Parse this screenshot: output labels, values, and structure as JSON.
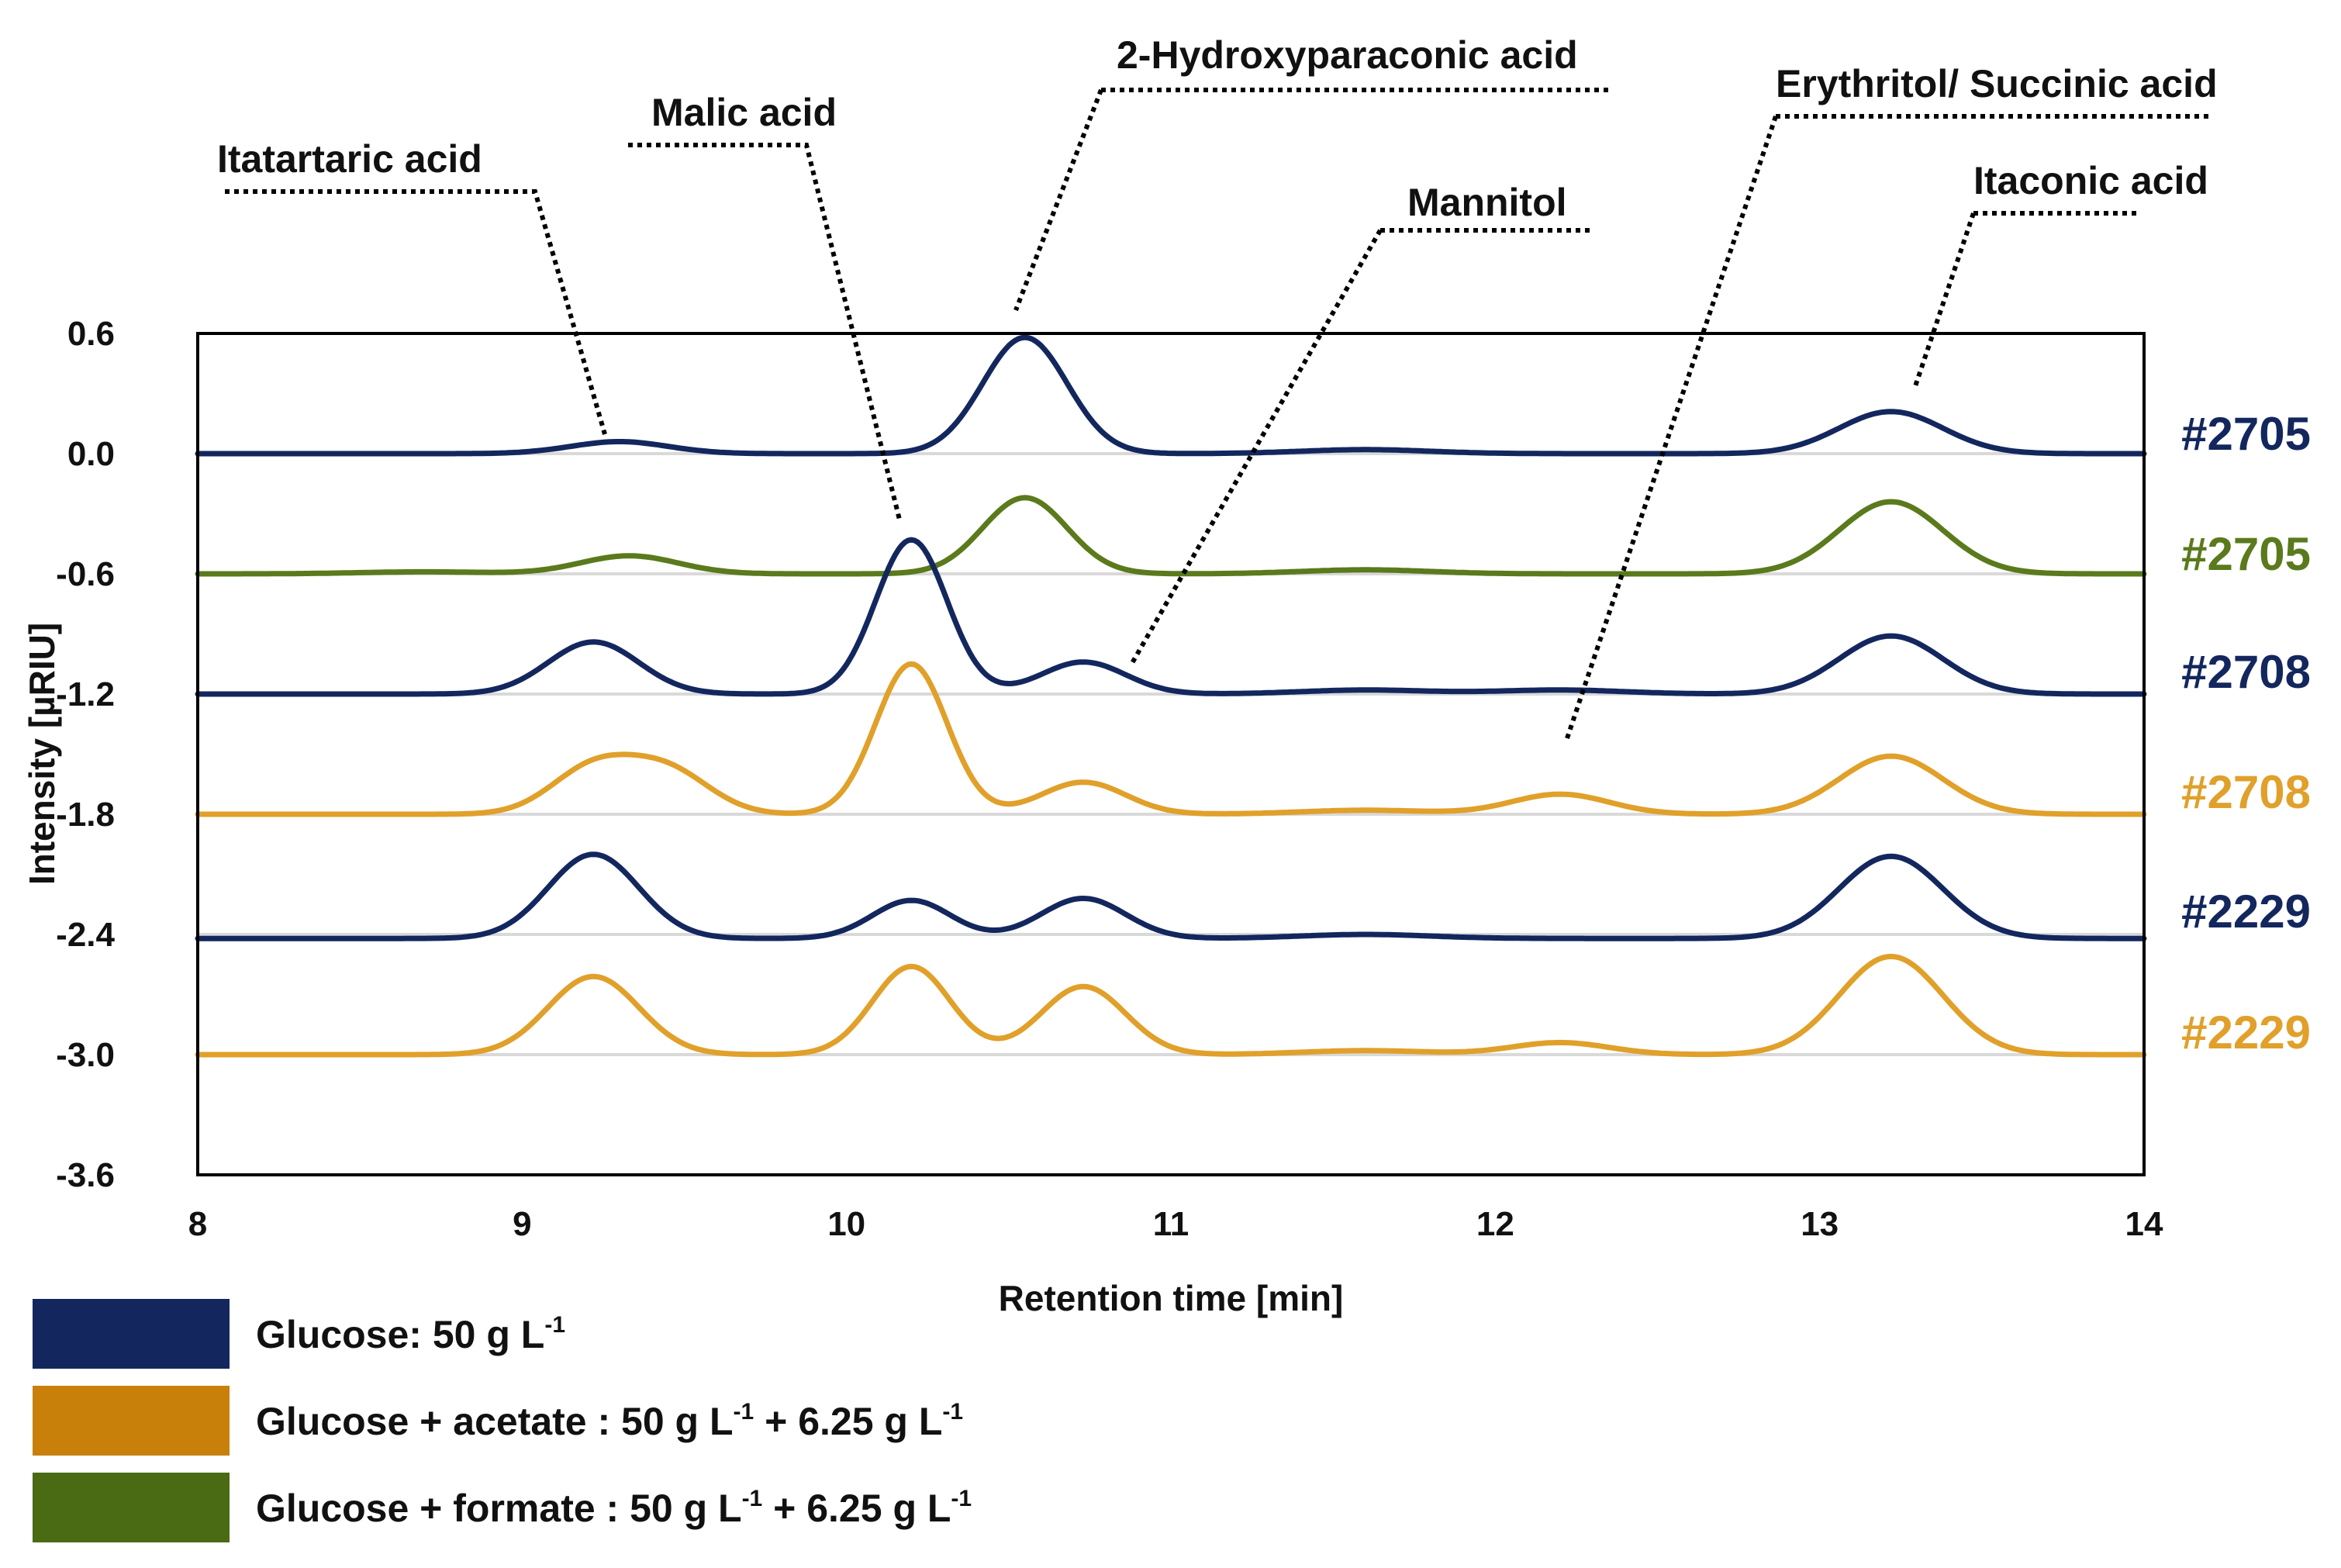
{
  "chart_data": {
    "type": "line",
    "title": "",
    "xlabel": "Retention time [min]",
    "ylabel": "Intensity [µRIU]",
    "xlim": [
      8,
      14
    ],
    "ylim": [
      -3.6,
      0.6
    ],
    "x_ticks": [
      "8",
      "9",
      "10",
      "11",
      "12",
      "13",
      "14"
    ],
    "y_ticks": [
      "0.6",
      "0.0",
      "-0.6",
      "-1.2",
      "-1.8",
      "-2.4",
      "-3.0",
      "-3.6"
    ],
    "grid": "horizontal",
    "colors": {
      "glucose": "#13275e",
      "acetate": "#e0a02a",
      "formate": "#5a7a1c"
    },
    "series": [
      {
        "name": "#2705",
        "condition": "glucose",
        "baseline": 0.0,
        "tilt": 0.0,
        "peaks": [
          {
            "rt": 9.3,
            "height": 0.06,
            "width": 0.15
          },
          {
            "rt": 10.55,
            "height": 0.58,
            "width": 0.13
          },
          {
            "rt": 11.6,
            "height": 0.02,
            "width": 0.2
          },
          {
            "rt": 13.22,
            "height": 0.21,
            "width": 0.16
          }
        ]
      },
      {
        "name": "#2705",
        "condition": "formate",
        "baseline": -0.6,
        "tilt": 0.0,
        "peaks": [
          {
            "rt": 9.33,
            "height": 0.09,
            "width": 0.15
          },
          {
            "rt": 8.7,
            "height": 0.01,
            "width": 0.2
          },
          {
            "rt": 10.55,
            "height": 0.38,
            "width": 0.13
          },
          {
            "rt": 11.6,
            "height": 0.02,
            "width": 0.2
          },
          {
            "rt": 13.22,
            "height": 0.36,
            "width": 0.16
          }
        ]
      },
      {
        "name": "#2708",
        "condition": "glucose",
        "baseline": -1.2,
        "tilt": 0.0,
        "peaks": [
          {
            "rt": 9.22,
            "height": 0.26,
            "width": 0.14
          },
          {
            "rt": 10.2,
            "height": 0.77,
            "width": 0.11
          },
          {
            "rt": 10.73,
            "height": 0.16,
            "width": 0.13
          },
          {
            "rt": 11.6,
            "height": 0.02,
            "width": 0.2
          },
          {
            "rt": 12.2,
            "height": 0.02,
            "width": 0.2
          },
          {
            "rt": 13.22,
            "height": 0.29,
            "width": 0.16
          }
        ]
      },
      {
        "name": "#2708",
        "condition": "acetate",
        "baseline": -1.8,
        "tilt": 0.0,
        "peaks": [
          {
            "rt": 9.22,
            "height": 0.23,
            "width": 0.13
          },
          {
            "rt": 9.45,
            "height": 0.21,
            "width": 0.13
          },
          {
            "rt": 10.2,
            "height": 0.75,
            "width": 0.11
          },
          {
            "rt": 10.73,
            "height": 0.16,
            "width": 0.13
          },
          {
            "rt": 11.6,
            "height": 0.02,
            "width": 0.2
          },
          {
            "rt": 12.2,
            "height": 0.1,
            "width": 0.15
          },
          {
            "rt": 13.22,
            "height": 0.29,
            "width": 0.16
          }
        ]
      },
      {
        "name": "#2229",
        "condition": "glucose",
        "baseline": -2.42,
        "tilt": 0.0,
        "peaks": [
          {
            "rt": 9.22,
            "height": 0.42,
            "width": 0.14
          },
          {
            "rt": 10.2,
            "height": 0.19,
            "width": 0.12
          },
          {
            "rt": 10.73,
            "height": 0.2,
            "width": 0.13
          },
          {
            "rt": 11.6,
            "height": 0.02,
            "width": 0.2
          },
          {
            "rt": 13.22,
            "height": 0.41,
            "width": 0.16
          }
        ]
      },
      {
        "name": "#2229",
        "condition": "acetate",
        "baseline": -3.0,
        "tilt": 0.0,
        "peaks": [
          {
            "rt": 9.22,
            "height": 0.39,
            "width": 0.14
          },
          {
            "rt": 10.2,
            "height": 0.44,
            "width": 0.12
          },
          {
            "rt": 10.73,
            "height": 0.34,
            "width": 0.13
          },
          {
            "rt": 11.6,
            "height": 0.02,
            "width": 0.2
          },
          {
            "rt": 12.2,
            "height": 0.06,
            "width": 0.15
          },
          {
            "rt": 13.22,
            "height": 0.49,
            "width": 0.16
          }
        ]
      }
    ],
    "annotations": [
      {
        "text": "Itatartaric acid"
      },
      {
        "text": "Malic acid"
      },
      {
        "text": "2-Hydroxyparaconic  acid"
      },
      {
        "text": "Mannitol"
      },
      {
        "text": "Erythritol/ Succinic acid"
      },
      {
        "text": "Itaconic acid"
      }
    ],
    "legend": {
      "placement": "bottom-left",
      "entries": [
        {
          "label": "Glucose: 50 g L",
          "sup": "-1",
          "rest": [],
          "color": "#13275e"
        },
        {
          "label": "Glucose + acetate : 50 g L",
          "sup": "-1",
          "rest": [
            {
              "mid": " + 6.25 g L",
              "sup": "-1"
            }
          ],
          "color": "#c8800a"
        },
        {
          "label": "Glucose + formate : 50 g L",
          "sup": "-1",
          "rest": [
            {
              "mid": " + 6.25 g L",
              "sup": "-1"
            }
          ],
          "color": "#4a6a14"
        }
      ]
    }
  }
}
